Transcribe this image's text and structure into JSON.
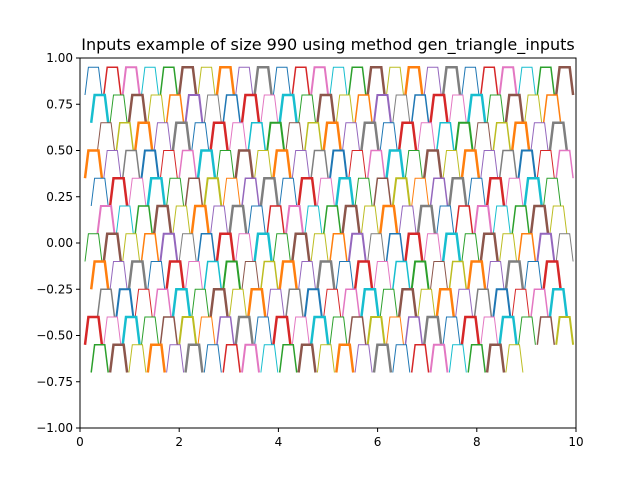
{
  "chart_data": {
    "type": "line",
    "title": "Inputs example of size 990 using method gen_triangle_inputs",
    "xlabel": "",
    "ylabel": "",
    "xlim": [
      0,
      10
    ],
    "ylim": [
      -1.0,
      1.0
    ],
    "x_ticks": [
      "0",
      "2",
      "4",
      "6",
      "8",
      "10"
    ],
    "y_ticks": [
      "−1.00",
      "−0.75",
      "−0.50",
      "−0.25",
      "0.00",
      "0.25",
      "0.50",
      "0.75",
      "1.00"
    ],
    "grid": false,
    "legend": "none",
    "levels": [
      0.95,
      0.8,
      0.65,
      0.5,
      0.35,
      0.2,
      0.05,
      -0.1,
      -0.25,
      -0.4,
      -0.55,
      -0.7
    ],
    "segment_period": 0.38,
    "x_start": 0.1,
    "x_end": 10.0,
    "last_row_x_end": 9.1,
    "colors": [
      "#1f77b4",
      "#ff7f0e",
      "#2ca02c",
      "#d62728",
      "#9467bd",
      "#8c564b",
      "#e377c2",
      "#7f7f7f",
      "#bcbd22",
      "#17becf"
    ]
  }
}
